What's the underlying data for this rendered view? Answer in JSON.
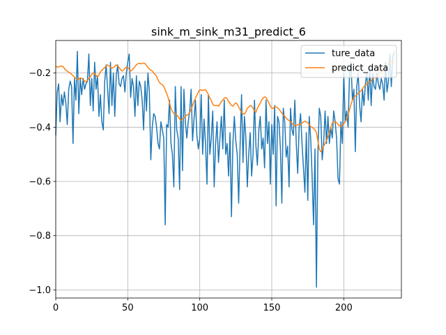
{
  "chart_data": {
    "type": "line",
    "title": "sink_m_sink_m31_predict_6",
    "xlabel": "",
    "ylabel": "",
    "xlim": [
      0,
      240
    ],
    "ylim": [
      -1.03,
      -0.08
    ],
    "x_ticks": [
      0,
      50,
      100,
      150,
      200
    ],
    "y_ticks": [
      -1.0,
      -0.8,
      -0.6,
      -0.4,
      -0.2
    ],
    "y_tick_labels": [
      "−1.0",
      "−0.8",
      "−0.6",
      "−0.4",
      "−0.2"
    ],
    "grid": true,
    "legend_position": "upper right",
    "series": [
      {
        "name": "ture_data",
        "color": "#1f77b4",
        "values": [
          -0.43,
          -0.27,
          -0.24,
          -0.38,
          -0.28,
          -0.32,
          -0.27,
          -0.31,
          -0.39,
          -0.26,
          -0.23,
          -0.25,
          -0.46,
          -0.22,
          -0.3,
          -0.12,
          -0.35,
          -0.22,
          -0.28,
          -0.22,
          -0.26,
          -0.24,
          -0.23,
          -0.13,
          -0.32,
          -0.22,
          -0.34,
          -0.16,
          -0.26,
          -0.21,
          -0.36,
          -0.28,
          -0.38,
          -0.41,
          -0.23,
          -0.17,
          -0.26,
          -0.35,
          -0.16,
          -0.32,
          -0.2,
          -0.36,
          -0.21,
          -0.17,
          -0.24,
          -0.25,
          -0.22,
          -0.21,
          -0.27,
          -0.2,
          -0.16,
          -0.13,
          -0.29,
          -0.22,
          -0.25,
          -0.36,
          -0.21,
          -0.32,
          -0.23,
          -0.25,
          -0.3,
          -0.41,
          -0.23,
          -0.34,
          -0.2,
          -0.27,
          -0.52,
          -0.4,
          -0.35,
          -0.36,
          -0.4,
          -0.46,
          -0.48,
          -0.38,
          -0.41,
          -0.44,
          -0.76,
          -0.39,
          -0.4,
          -0.3,
          -0.46,
          -0.5,
          -0.62,
          -0.25,
          -0.41,
          -0.44,
          -0.63,
          -0.25,
          -0.56,
          -0.26,
          -0.38,
          -0.44,
          -0.38,
          -0.34,
          -0.26,
          -0.45,
          -0.37,
          -0.3,
          -0.43,
          -0.48,
          -0.44,
          -0.28,
          -0.5,
          -0.37,
          -0.46,
          -0.61,
          -0.28,
          -0.5,
          -0.44,
          -0.34,
          -0.62,
          -0.46,
          -0.38,
          -0.53,
          -0.44,
          -0.36,
          -0.48,
          -0.3,
          -0.5,
          -0.46,
          -0.58,
          -0.42,
          -0.73,
          -0.46,
          -0.36,
          -0.45,
          -0.5,
          -0.68,
          -0.47,
          -0.28,
          -0.53,
          -0.36,
          -0.44,
          -0.62,
          -0.5,
          -0.42,
          -0.58,
          -0.5,
          -0.3,
          -0.47,
          -0.54,
          -0.41,
          -0.36,
          -0.48,
          -0.44,
          -0.55,
          -0.3,
          -0.46,
          -0.38,
          -0.61,
          -0.39,
          -0.5,
          -0.32,
          -0.69,
          -0.36,
          -0.38,
          -0.48,
          -0.68,
          -0.33,
          -0.38,
          -0.51,
          -0.47,
          -0.62,
          -0.33,
          -0.41,
          -0.43,
          -0.3,
          -0.46,
          -0.57,
          -0.4,
          -0.35,
          -0.46,
          -0.55,
          -0.64,
          -0.42,
          -0.67,
          -0.36,
          -0.44,
          -0.58,
          -0.76,
          -0.48,
          -0.99,
          -0.5,
          -0.33,
          -0.36,
          -0.52,
          -0.46,
          -0.34,
          -0.46,
          -0.36,
          -0.46,
          -0.4,
          -0.44,
          -0.34,
          -0.38,
          -0.44,
          -0.59,
          -0.61,
          -0.38,
          -0.46,
          -0.2,
          -0.38,
          -0.34,
          -0.4,
          -0.2,
          -0.16,
          -0.3,
          -0.26,
          -0.49,
          -0.25,
          -0.2,
          -0.32,
          -0.38,
          -0.26,
          -0.32,
          -0.24,
          -0.2,
          -0.3,
          -0.18,
          -0.32,
          -0.2,
          -0.25,
          -0.26,
          -0.2,
          -0.24,
          -0.26,
          -0.22,
          -0.24,
          -0.3,
          -0.16,
          -0.27,
          -0.23,
          -0.13,
          -0.25,
          -0.14,
          -0.12
        ]
      },
      {
        "name": "predict_data",
        "color": "#ff7f0e",
        "values": [
          -0.175,
          -0.178,
          -0.178,
          -0.175,
          -0.174,
          -0.176,
          -0.183,
          -0.19,
          -0.193,
          -0.197,
          -0.2,
          -0.205,
          -0.21,
          -0.215,
          -0.22,
          -0.225,
          -0.222,
          -0.218,
          -0.22,
          -0.225,
          -0.23,
          -0.232,
          -0.228,
          -0.22,
          -0.214,
          -0.205,
          -0.2,
          -0.202,
          -0.21,
          -0.215,
          -0.207,
          -0.196,
          -0.19,
          -0.185,
          -0.18,
          -0.174,
          -0.17,
          -0.174,
          -0.178,
          -0.182,
          -0.18,
          -0.175,
          -0.17,
          -0.174,
          -0.18,
          -0.188,
          -0.193,
          -0.19,
          -0.182,
          -0.178,
          -0.18,
          -0.186,
          -0.192,
          -0.19,
          -0.183,
          -0.176,
          -0.17,
          -0.166,
          -0.164,
          -0.166,
          -0.165,
          -0.163,
          -0.165,
          -0.172,
          -0.18,
          -0.185,
          -0.19,
          -0.192,
          -0.2,
          -0.205,
          -0.212,
          -0.225,
          -0.235,
          -0.24,
          -0.243,
          -0.25,
          -0.262,
          -0.275,
          -0.29,
          -0.31,
          -0.33,
          -0.342,
          -0.35,
          -0.35,
          -0.355,
          -0.36,
          -0.37,
          -0.375,
          -0.37,
          -0.365,
          -0.36,
          -0.355,
          -0.353,
          -0.345,
          -0.335,
          -0.32,
          -0.305,
          -0.292,
          -0.282,
          -0.27,
          -0.262,
          -0.262,
          -0.265,
          -0.262,
          -0.262,
          -0.27,
          -0.28,
          -0.292,
          -0.302,
          -0.315,
          -0.32,
          -0.32,
          -0.32,
          -0.322,
          -0.315,
          -0.305,
          -0.3,
          -0.293,
          -0.29,
          -0.295,
          -0.305,
          -0.312,
          -0.32,
          -0.322,
          -0.315,
          -0.31,
          -0.315,
          -0.325,
          -0.335,
          -0.345,
          -0.35,
          -0.352,
          -0.343,
          -0.33,
          -0.325,
          -0.32,
          -0.322,
          -0.33,
          -0.34,
          -0.345,
          -0.33,
          -0.32,
          -0.31,
          -0.3,
          -0.292,
          -0.288,
          -0.29,
          -0.3,
          -0.31,
          -0.322,
          -0.33,
          -0.33,
          -0.325,
          -0.325,
          -0.328,
          -0.333,
          -0.34,
          -0.348,
          -0.355,
          -0.36,
          -0.365,
          -0.372,
          -0.375,
          -0.38,
          -0.385,
          -0.39,
          -0.395,
          -0.393,
          -0.39,
          -0.39,
          -0.39,
          -0.385,
          -0.38,
          -0.378,
          -0.38,
          -0.384,
          -0.39,
          -0.398,
          -0.4,
          -0.405,
          -0.41,
          -0.42,
          -0.45,
          -0.48,
          -0.49,
          -0.483,
          -0.47,
          -0.46,
          -0.45,
          -0.435,
          -0.42,
          -0.4,
          -0.385,
          -0.38,
          -0.38,
          -0.383,
          -0.39,
          -0.395,
          -0.397,
          -0.393,
          -0.387,
          -0.38,
          -0.37,
          -0.355,
          -0.335,
          -0.315,
          -0.3,
          -0.29,
          -0.285,
          -0.28,
          -0.275,
          -0.27,
          -0.265,
          -0.258,
          -0.25,
          -0.245,
          -0.24,
          -0.235,
          -0.232,
          -0.228,
          -0.222,
          -0.218,
          -0.215,
          -0.21,
          -0.205,
          -0.2,
          -0.195,
          -0.19,
          -0.185,
          -0.18,
          -0.172,
          -0.165,
          -0.16,
          -0.158,
          -0.157,
          -0.16
        ]
      }
    ]
  }
}
